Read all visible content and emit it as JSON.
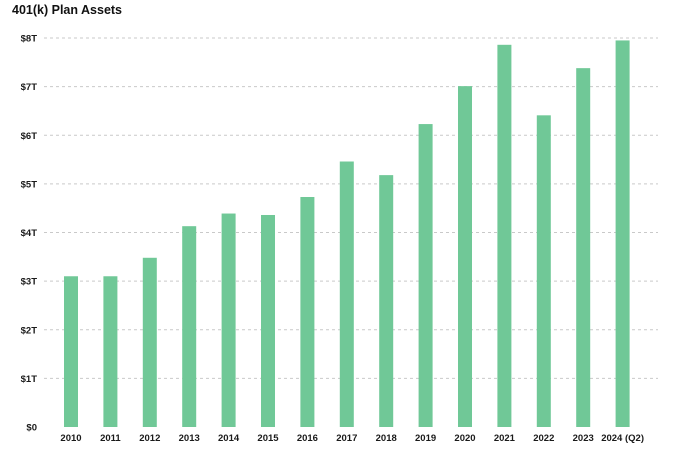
{
  "chart_data": {
    "type": "bar",
    "title": "401(k) Plan Assets",
    "xlabel": "",
    "ylabel": "",
    "categories": [
      "2010",
      "2011",
      "2012",
      "2013",
      "2014",
      "2015",
      "2016",
      "2017",
      "2018",
      "2019",
      "2020",
      "2021",
      "2022",
      "2023",
      "2024 (Q2)"
    ],
    "values": [
      3.1,
      3.1,
      3.48,
      4.13,
      4.39,
      4.36,
      4.73,
      5.46,
      5.18,
      6.23,
      7.01,
      7.86,
      6.41,
      7.38,
      7.95
    ],
    "unit": "trillion USD",
    "y_ticks": [
      0,
      1,
      2,
      3,
      4,
      5,
      6,
      7,
      8
    ],
    "y_tick_labels": [
      "$0",
      "$1T",
      "$2T",
      "$3T",
      "$4T",
      "$5T",
      "$6T",
      "$7T",
      "$8T"
    ],
    "ylim": [
      0,
      8
    ],
    "grid": true,
    "grid_style": "dashed-horizontal",
    "legend": "none",
    "colors": {
      "bar": "#70c897",
      "grid": "#c9c9c9",
      "text": "#1a1a1a"
    }
  }
}
